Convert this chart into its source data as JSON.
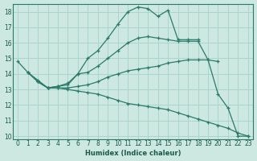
{
  "bg_color": "#cce8e0",
  "grid_color": "#aad4cc",
  "line_color": "#2a7a6a",
  "xlabel": "Humidex (Indice chaleur)",
  "xlim": [
    -0.5,
    23.5
  ],
  "ylim": [
    9.8,
    18.5
  ],
  "yticks": [
    10,
    11,
    12,
    13,
    14,
    15,
    16,
    17,
    18
  ],
  "xticks": [
    0,
    1,
    2,
    3,
    4,
    5,
    6,
    7,
    8,
    9,
    10,
    11,
    12,
    13,
    14,
    15,
    16,
    17,
    18,
    19,
    20,
    21,
    22,
    23
  ],
  "lines": [
    {
      "x": [
        0,
        1,
        2,
        3,
        4,
        5,
        6,
        7,
        8,
        9,
        10,
        11,
        12,
        13,
        14,
        15,
        16,
        17,
        18
      ],
      "y": [
        14.8,
        14.1,
        13.5,
        13.1,
        13.2,
        13.4,
        14.0,
        15.0,
        15.5,
        16.3,
        17.2,
        18.0,
        18.3,
        18.2,
        17.7,
        18.1,
        16.2,
        16.2,
        16.2
      ]
    },
    {
      "x": [
        1,
        2,
        3,
        4,
        5,
        6,
        7,
        8,
        9,
        10,
        11,
        12,
        13,
        14,
        15,
        16,
        17,
        18,
        19,
        20
      ],
      "y": [
        14.1,
        13.5,
        13.1,
        13.2,
        13.3,
        14.0,
        14.1,
        14.5,
        15.0,
        15.5,
        16.0,
        16.3,
        16.4,
        16.3,
        16.2,
        16.1,
        16.1,
        16.1,
        14.9,
        14.8
      ]
    },
    {
      "x": [
        1,
        2,
        3,
        4,
        5,
        6,
        7,
        8,
        9,
        10,
        11,
        12,
        13,
        14,
        15,
        16,
        17,
        18,
        19,
        20,
        21,
        22,
        23
      ],
      "y": [
        14.1,
        13.6,
        13.1,
        13.1,
        13.1,
        13.2,
        13.3,
        13.5,
        13.8,
        14.0,
        14.2,
        14.3,
        14.4,
        14.5,
        14.7,
        14.8,
        14.9,
        14.9,
        14.9,
        12.7,
        11.8,
        10.0,
        10.0
      ]
    },
    {
      "x": [
        2,
        3,
        4,
        5,
        6,
        7,
        8,
        9,
        10,
        11,
        12,
        13,
        14,
        15,
        16,
        17,
        18,
        19,
        20,
        21,
        22,
        23
      ],
      "y": [
        13.5,
        13.1,
        13.1,
        13.0,
        12.9,
        12.8,
        12.7,
        12.5,
        12.3,
        12.1,
        12.0,
        11.9,
        11.8,
        11.7,
        11.5,
        11.3,
        11.1,
        10.9,
        10.7,
        10.5,
        10.2,
        10.0
      ]
    }
  ]
}
